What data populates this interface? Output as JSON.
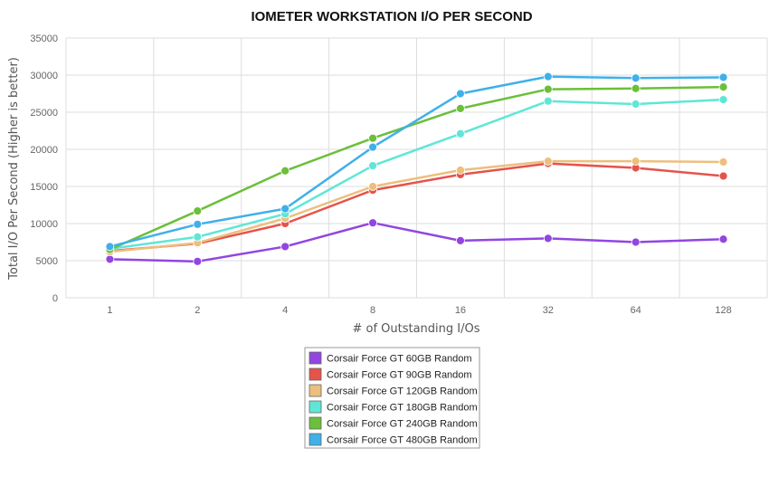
{
  "chart_data": {
    "type": "line",
    "title": "IOMETER WORKSTATION I/O PER SECOND",
    "xlabel": "# of Outstanding I/Os",
    "ylabel": "Total I/O Per Second (Higher is better)",
    "categories": [
      "1",
      "2",
      "4",
      "8",
      "16",
      "32",
      "64",
      "128"
    ],
    "yticks": [
      "0",
      "5000",
      "10000",
      "15000",
      "20000",
      "25000",
      "30000",
      "35000"
    ],
    "ylim": [
      0,
      35000
    ],
    "grid": true,
    "legend_position": "bottom-center",
    "series": [
      {
        "name": "Corsair Force GT 60GB Random",
        "color": "#9245e0",
        "values": [
          5200,
          4900,
          6900,
          10100,
          7700,
          8000,
          7500,
          7900
        ]
      },
      {
        "name": "Corsair Force GT 90GB Random",
        "color": "#e5534b",
        "values": [
          6300,
          7300,
          10000,
          14500,
          16600,
          18100,
          17500,
          16400
        ]
      },
      {
        "name": "Corsair Force GT 120GB Random",
        "color": "#ecbf7d",
        "values": [
          6200,
          7400,
          10700,
          15000,
          17200,
          18400,
          18400,
          18300
        ]
      },
      {
        "name": "Corsair Force GT 180GB Random",
        "color": "#5ee7d6",
        "values": [
          6600,
          8200,
          11300,
          17800,
          22100,
          26500,
          26100,
          26700
        ]
      },
      {
        "name": "Corsair Force GT 240GB Random",
        "color": "#6bbf3a",
        "values": [
          6500,
          11700,
          17100,
          21500,
          25500,
          28100,
          28200,
          28400
        ]
      },
      {
        "name": "Corsair Force GT 480GB Random",
        "color": "#3fb0ea",
        "values": [
          6900,
          9900,
          12000,
          20300,
          27500,
          29800,
          29600,
          29700
        ]
      }
    ]
  }
}
